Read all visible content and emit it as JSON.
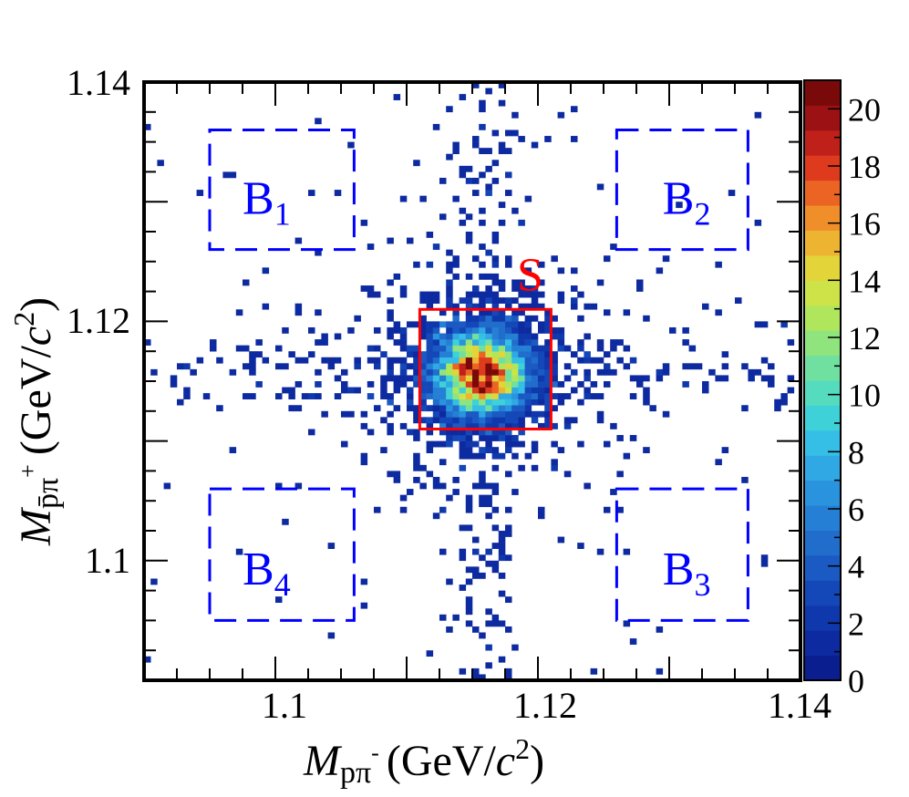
{
  "chart_data": {
    "type": "heatmap",
    "title": "",
    "x_axis": {
      "title_var": "M",
      "title_sub": "pπ",
      "title_sup": "-",
      "title_units": "(GeV/",
      "title_c": "c",
      "title_pow": "2",
      "title_close": ")",
      "range": [
        1.09,
        1.14
      ],
      "labeled_ticks": [
        1.1,
        1.12,
        1.14
      ],
      "tick_labels": [
        "1.1",
        "1.12",
        "1.14"
      ]
    },
    "y_axis": {
      "title_var": "M",
      "title_sub": "p̄π",
      "title_sup": "+",
      "title_units": "(GeV/",
      "title_c": "c",
      "title_pow": "2",
      "title_close": ")",
      "range": [
        1.09,
        1.14
      ],
      "labeled_ticks": [
        1.1,
        1.12,
        1.14
      ],
      "tick_labels": [
        "1.1",
        "1.12",
        "1.14"
      ]
    },
    "color_scale": {
      "min": 0,
      "max": 21,
      "n_levels": 21,
      "labeled_ticks": [
        0,
        2,
        4,
        6,
        8,
        10,
        12,
        14,
        16,
        18,
        20
      ],
      "tick_labels": [
        "0",
        "2",
        "4",
        "6",
        "8",
        "10",
        "12",
        "14",
        "16",
        "18",
        "20"
      ],
      "colors": [
        "#0b1e8f",
        "#0d2aa0",
        "#1038ad",
        "#1448b8",
        "#1a5ac2",
        "#206dcc",
        "#2580d5",
        "#2a93dd",
        "#2fa8e4",
        "#35bfe6",
        "#3fd1d8",
        "#55dbbd",
        "#6fe0a0",
        "#8fe47e",
        "#afe65c",
        "#cde347",
        "#e3d43a",
        "#ecb431",
        "#f08f2a",
        "#ec6424",
        "#dd3a1e",
        "#c0201a",
        "#9c1214",
        "#7a0a0a"
      ]
    },
    "signal_center": {
      "x": 1.1157,
      "y": 1.1157
    },
    "signal_width": 0.0022,
    "sidebands": {
      "x_center": 1.1157,
      "y_center": 1.1157,
      "width": 0.005
    },
    "background_density": 0.06,
    "regions": [
      {
        "name": "S",
        "label": "S",
        "subscript": "",
        "style": "solid",
        "color": "#ff0000",
        "x": [
          1.111,
          1.121
        ],
        "y": [
          1.111,
          1.121
        ],
        "label_pos": [
          1.1184,
          1.1226
        ]
      },
      {
        "name": "B1",
        "label": "B",
        "subscript": "1",
        "style": "dashed",
        "color": "#0000ff",
        "x": [
          1.095,
          1.106
        ],
        "y": [
          1.126,
          1.136
        ],
        "label_pos": [
          1.0975,
          1.129
        ]
      },
      {
        "name": "B2",
        "label": "B",
        "subscript": "2",
        "style": "dashed",
        "color": "#0000ff",
        "x": [
          1.126,
          1.136
        ],
        "y": [
          1.126,
          1.136
        ],
        "label_pos": [
          1.1295,
          1.129
        ]
      },
      {
        "name": "B3",
        "label": "B",
        "subscript": "3",
        "style": "dashed",
        "color": "#0000ff",
        "x": [
          1.126,
          1.136
        ],
        "y": [
          1.095,
          1.106
        ],
        "label_pos": [
          1.1295,
          1.098
        ]
      },
      {
        "name": "B4",
        "label": "B",
        "subscript": "4",
        "style": "dashed",
        "color": "#0000ff",
        "x": [
          1.095,
          1.106
        ],
        "y": [
          1.095,
          1.106
        ],
        "label_pos": [
          1.0975,
          1.098
        ]
      }
    ]
  }
}
